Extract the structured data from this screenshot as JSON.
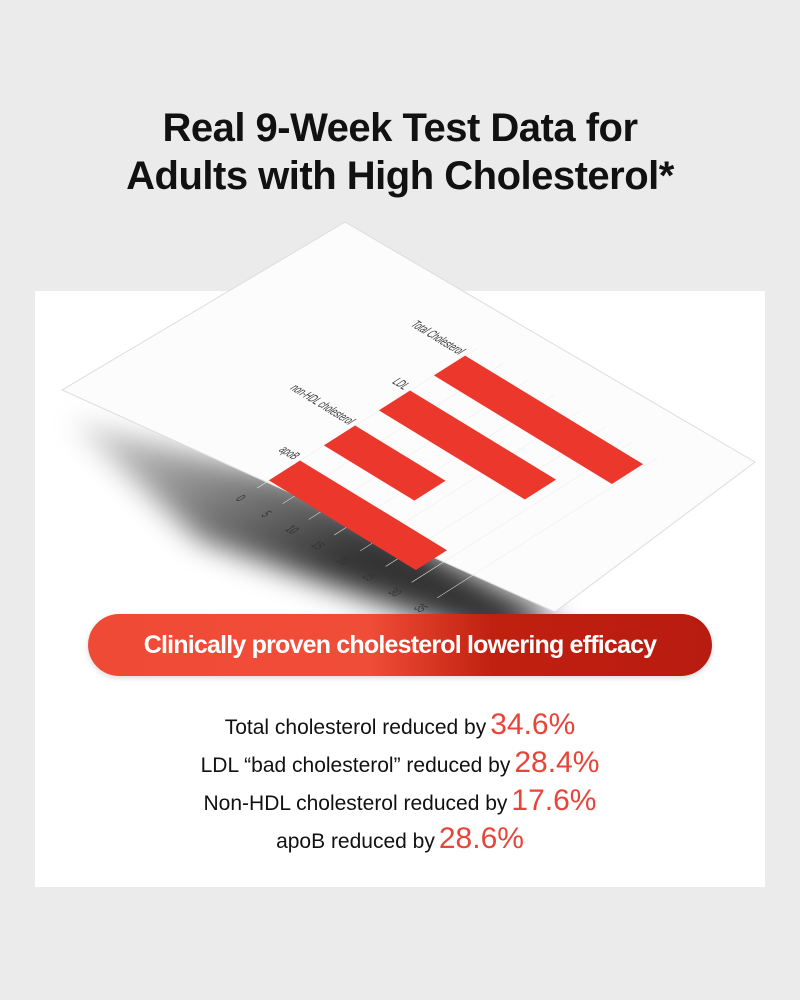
{
  "title": {
    "line1": "Real 9-Week Test Data for",
    "line2": "Adults with High Cholesterol*"
  },
  "chart_data": {
    "type": "bar",
    "orientation": "horizontal",
    "categories": [
      "Total Cholesterol",
      "LDL",
      "non-HDL cholesterol",
      "apoB"
    ],
    "values": [
      34.6,
      28.4,
      17.6,
      28.6
    ],
    "xlim": [
      0,
      35
    ],
    "ticks": [
      "0",
      "5",
      "10",
      "15",
      "20",
      "25",
      "30",
      "35"
    ],
    "color": "#ec372c",
    "xlabel": "",
    "ylabel": "",
    "grid": true
  },
  "banner": {
    "label": "Clinically proven cholesterol lowering efficacy"
  },
  "stats": [
    {
      "label": "Total cholesterol reduced by",
      "value": "34.6%"
    },
    {
      "label": "LDL “bad cholesterol” reduced by",
      "value": "28.4%"
    },
    {
      "label": "Non-HDL cholesterol reduced by",
      "value": "17.6%"
    },
    {
      "label": "apoB reduced by",
      "value": "28.6%"
    }
  ]
}
